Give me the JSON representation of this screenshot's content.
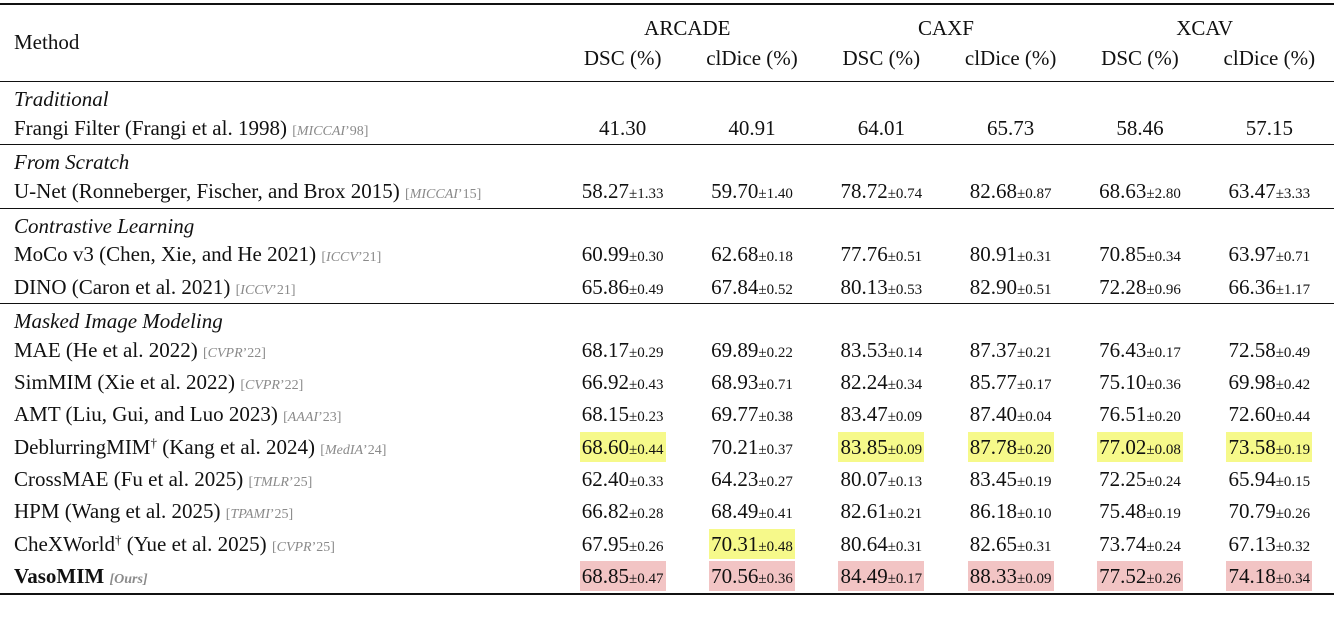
{
  "header": {
    "method_label": "Method",
    "datasets": [
      "ARCADE",
      "CAXF",
      "XCAV"
    ],
    "metrics": [
      "DSC (%)",
      "clDice (%)",
      "DSC (%)",
      "clDice (%)",
      "DSC (%)",
      "clDice (%)"
    ]
  },
  "sections": {
    "traditional": "Traditional",
    "from_scratch": "From Scratch",
    "contrastive": "Contrastive Learning",
    "mim": "Masked Image Modeling"
  },
  "rows": {
    "frangi": {
      "method": "Frangi Filter (Frangi et al. 1998)",
      "venue_name": "MICCAI",
      "venue_year": "’98",
      "v": [
        "41.30",
        "40.91",
        "64.01",
        "65.73",
        "58.46",
        "57.15"
      ]
    },
    "unet": {
      "method": "U-Net (Ronneberger, Fischer, and Brox 2015)",
      "venue_name": "MICCAI",
      "venue_year": "’15",
      "v": [
        "58.27",
        "59.70",
        "78.72",
        "82.68",
        "68.63",
        "63.47"
      ],
      "s": [
        "±1.33",
        "±1.40",
        "±0.74",
        "±0.87",
        "±2.80",
        "±3.33"
      ]
    },
    "moco": {
      "method": "MoCo v3 (Chen, Xie, and He 2021)",
      "venue_name": "ICCV",
      "venue_year": "’21",
      "v": [
        "60.99",
        "62.68",
        "77.76",
        "80.91",
        "70.85",
        "63.97"
      ],
      "s": [
        "±0.30",
        "±0.18",
        "±0.51",
        "±0.31",
        "±0.34",
        "±0.71"
      ]
    },
    "dino": {
      "method": "DINO (Caron et al. 2021)",
      "venue_name": "ICCV",
      "venue_year": "’21",
      "v": [
        "65.86",
        "67.84",
        "80.13",
        "82.90",
        "72.28",
        "66.36"
      ],
      "s": [
        "±0.49",
        "±0.52",
        "±0.53",
        "±0.51",
        "±0.96",
        "±1.17"
      ]
    },
    "mae": {
      "method": "MAE (He et al. 2022)",
      "venue_name": "CVPR",
      "venue_year": "’22",
      "v": [
        "68.17",
        "69.89",
        "83.53",
        "87.37",
        "76.43",
        "72.58"
      ],
      "s": [
        "±0.29",
        "±0.22",
        "±0.14",
        "±0.21",
        "±0.17",
        "±0.49"
      ]
    },
    "simmim": {
      "method": "SimMIM (Xie et al. 2022)",
      "venue_name": "CVPR",
      "venue_year": "’22",
      "v": [
        "66.92",
        "68.93",
        "82.24",
        "85.77",
        "75.10",
        "69.98"
      ],
      "s": [
        "±0.43",
        "±0.71",
        "±0.34",
        "±0.17",
        "±0.36",
        "±0.42"
      ]
    },
    "amt": {
      "method": "AMT (Liu, Gui, and Luo 2023)",
      "venue_name": "AAAI",
      "venue_year": "’23",
      "v": [
        "68.15",
        "69.77",
        "83.47",
        "87.40",
        "76.51",
        "72.60"
      ],
      "s": [
        "±0.23",
        "±0.38",
        "±0.09",
        "±0.04",
        "±0.20",
        "±0.44"
      ]
    },
    "deblur": {
      "method_a": "DeblurringMIM",
      "dagger": "†",
      "method_b": " (Kang et al. 2024)",
      "venue_name": "MedIA",
      "venue_year": "’24",
      "v": [
        "68.60",
        "70.21",
        "83.85",
        "87.78",
        "77.02",
        "73.58"
      ],
      "s": [
        "±0.44",
        "±0.37",
        "±0.09",
        "±0.20",
        "±0.08",
        "±0.19"
      ]
    },
    "crossmae": {
      "method": "CrossMAE (Fu et al. 2025)",
      "venue_name": "TMLR",
      "venue_year": "’25",
      "v": [
        "62.40",
        "64.23",
        "80.07",
        "83.45",
        "72.25",
        "65.94"
      ],
      "s": [
        "±0.33",
        "±0.27",
        "±0.13",
        "±0.19",
        "±0.24",
        "±0.15"
      ]
    },
    "hpm": {
      "method": "HPM (Wang et al. 2025)",
      "venue_name": "TPAMI",
      "venue_year": "’25",
      "v": [
        "66.82",
        "68.49",
        "82.61",
        "86.18",
        "75.48",
        "70.79"
      ],
      "s": [
        "±0.28",
        "±0.41",
        "±0.21",
        "±0.10",
        "±0.19",
        "±0.26"
      ]
    },
    "chex": {
      "method_a": "CheXWorld",
      "dagger": "†",
      "method_b": " (Yue et al. 2025)",
      "venue_name": "CVPR",
      "venue_year": "’25",
      "v": [
        "67.95",
        "70.31",
        "80.64",
        "82.65",
        "73.74",
        "67.13"
      ],
      "s": [
        "±0.26",
        "±0.48",
        "±0.31",
        "±0.31",
        "±0.24",
        "±0.32"
      ]
    },
    "vaso": {
      "method": "VasoMIM",
      "venue": "[Ours]",
      "v": [
        "68.85",
        "70.56",
        "84.49",
        "88.33",
        "77.52",
        "74.18"
      ],
      "s": [
        "±0.47",
        "±0.36",
        "±0.17",
        "±0.09",
        "±0.26",
        "±0.34"
      ]
    }
  },
  "highlight_colors": {
    "second_best": "#f6f98a",
    "best": "#f2c4c4"
  }
}
